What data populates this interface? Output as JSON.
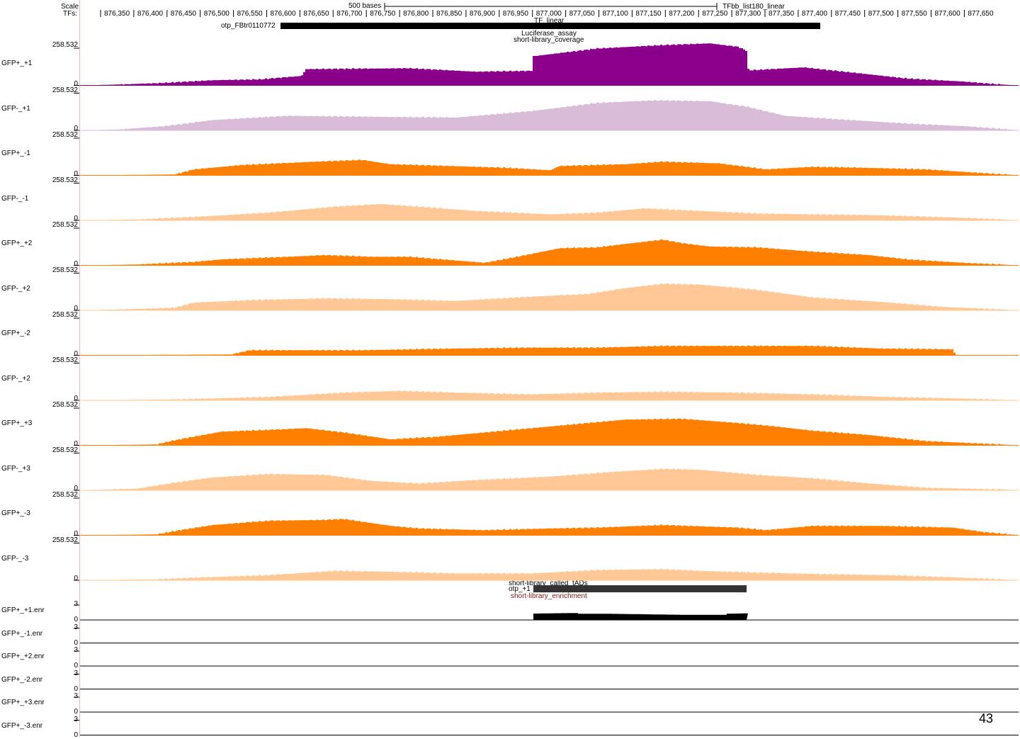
{
  "ruler": {
    "scale_label": "Scale",
    "tfs_label": "TFs:",
    "scale_text": "500 bases",
    "tfbb_label": "TFbb_list180_linear",
    "ticks": [
      "876,350",
      "876,400",
      "876,450",
      "876,500",
      "876,550",
      "876,600",
      "876,650",
      "876,700",
      "876,750",
      "876,800",
      "876,850",
      "876,900",
      "876,950",
      "877,000",
      "877,050",
      "877,100",
      "877,150",
      "877,200",
      "877,250",
      "877,300",
      "877,350",
      "877,400",
      "877,450",
      "877,500",
      "877,550",
      "877,600",
      "877,650"
    ]
  },
  "features": {
    "gene_label": "otp_FBtr0110772",
    "tf_linear_label": "TF_linear",
    "luciferase_label": "Luciferase_assay",
    "coverage_label": "short-library_coverage",
    "called_tads_label": "short-library_called_tADs",
    "otp_label": "otp_+1",
    "enrichment_label": "short-library_enrichment"
  },
  "coverage_tracks": [
    {
      "name": "GFP+_+1",
      "max": "258.532",
      "min": "0",
      "color": "#8b008b"
    },
    {
      "name": "GFP-_+1",
      "max": "258.532",
      "min": "0",
      "color": "#d8bcd8"
    },
    {
      "name": "GFP+_-1",
      "max": "258.532",
      "min": "0",
      "color": "#ff8000"
    },
    {
      "name": "GFP-_-1",
      "max": "258.532",
      "min": "0",
      "color": "#ffc896"
    },
    {
      "name": "GFP+_+2",
      "max": "258.532",
      "min": "0",
      "color": "#ff8000"
    },
    {
      "name": "GFP-_+2",
      "max": "258.532",
      "min": "0",
      "color": "#ffc896"
    },
    {
      "name": "GFP+_-2",
      "max": "258.532",
      "min": "0",
      "color": "#ff8000"
    },
    {
      "name": "GFP-_+2",
      "max": "258.532",
      "min": "0",
      "color": "#ffc896"
    },
    {
      "name": "GFP+_+3",
      "max": "258.532",
      "min": "0",
      "color": "#ff8000"
    },
    {
      "name": "GFP-_+3",
      "max": "258.532",
      "min": "0",
      "color": "#ffc896"
    },
    {
      "name": "GFP+_-3",
      "max": "258.532",
      "min": "0",
      "color": "#ff8000"
    },
    {
      "name": "GFP-_-3",
      "max": "258.532",
      "min": "0",
      "color": "#ffc896"
    }
  ],
  "enrichment_tracks": [
    {
      "name": "GFP+_+1.enr",
      "max": "3",
      "min": "0"
    },
    {
      "name": "GFP+_-1.enr",
      "max": "3",
      "min": "0"
    },
    {
      "name": "GFP+_+2.enr",
      "max": "3",
      "min": "0"
    },
    {
      "name": "GFP+_-2.enr",
      "max": "3",
      "min": "0"
    },
    {
      "name": "GFP+_+3.enr",
      "max": "3",
      "min": "0"
    },
    {
      "name": "GFP+_-3.enr",
      "max": "3",
      "min": "0"
    }
  ],
  "page_number": "43"
}
